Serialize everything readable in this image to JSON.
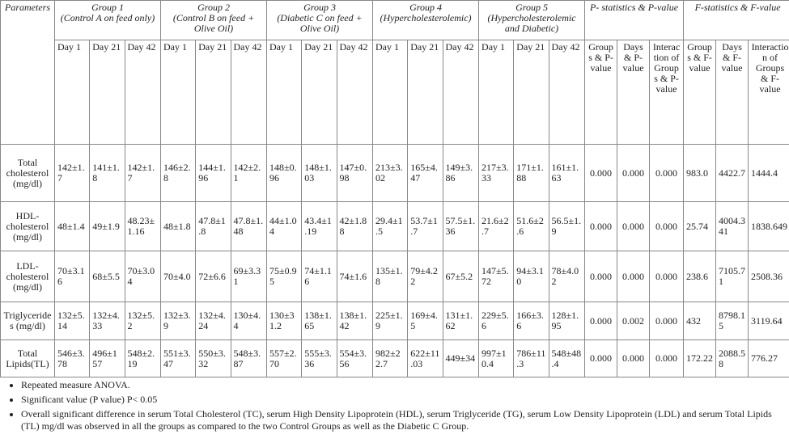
{
  "table": {
    "parameter_header": "Parameters",
    "groups": [
      {
        "name": "Group 1",
        "description": "(Control A on feed only)"
      },
      {
        "name": "Group 2",
        "description": "(Control B on feed + Olive Oil)"
      },
      {
        "name": "Group 3",
        "description": "(Diabetic C on feed + Olive Oil)"
      },
      {
        "name": "Group 4",
        "description": "(Hypercholesterolemic)"
      },
      {
        "name": "Group 5",
        "description": "(Hypercholesterolemic and Diabetic)"
      }
    ],
    "p_header": "P- statistics & P-value",
    "f_header": "F-statistics & F-value",
    "sub_headers": [
      "Day 1",
      "Day 21",
      "Day 42",
      "Day 1",
      "Day 21",
      "Day 42",
      "Day 1",
      "Day 21",
      "Day 42",
      "Day 1",
      "Day 21",
      "Day 42",
      "Day 1",
      "Day 21",
      "Day 42",
      "Groups & P-value",
      "Days & P-value",
      "Interaction of Groups & P-value",
      "Groups & F-value",
      "Days & F-value",
      "Interaction of Groups & F-value"
    ],
    "rows": [
      [
        "Total cholesterol (mg/dl)",
        "142±1.7",
        "141±1.8",
        "142±1.7",
        "146±2.8",
        "144±1.96",
        "142±2.1",
        "148±0.96",
        "148±1.03",
        "147±0.98",
        "213±3.02",
        "165±4.47",
        "149±3.86",
        "217±3.33",
        "171±1.88",
        "161±1.63",
        "0.000",
        "0.000",
        "0.000",
        "983.0",
        "4422.7",
        "1444.4"
      ],
      [
        "HDL-cholesterol (mg/dl)",
        "48±1.4",
        "49±1.9",
        "48.23±1.16",
        "48±1.8",
        "47.8±1.8",
        "47.8±1.48",
        "44±1.04",
        "43.4±1.19",
        "42±1.88",
        "29.4±1.5",
        "53.7±1.7",
        "57.5±1.36",
        "21.6±2.7",
        "51.6±2.6",
        "56.5±1.9",
        "0.000",
        "0.000",
        "0.000",
        "25.74",
        "4004.341",
        "1838.649"
      ],
      [
        "LDL-cholesterol (mg/dl)",
        "70±3.16",
        "68±5.5",
        "70±3.04",
        "70±4.0",
        "72±6.6",
        "69±3.31",
        "75±0.95",
        "74±1.16",
        "74±1.6",
        "135±1.8",
        "79±4.22",
        "67±5.2",
        "147±5.72",
        "94±3.10",
        "78±4.02",
        "0.000",
        "0.000",
        "0.000",
        "238.6",
        "7105.71",
        "2508.36"
      ],
      [
        "Triglycerides (mg/dl)",
        "132±5.14",
        "132±4.33",
        "132±5.2",
        "132±3.9",
        "132±4.24",
        "130±4.4",
        "130±31.2",
        "138±1.65",
        "138±1.42",
        "225±1.9",
        "169±4.5",
        "131±1.62",
        "229±5.6",
        "166±3.6",
        "128±1.95",
        "0.000",
        "0.002",
        "0.000",
        "432",
        "8798.15",
        "3119.64"
      ],
      [
        "Total Lipids(TL)",
        "546±3.78",
        "496±157",
        "548±2.19",
        "551±3.47",
        "550±3.32",
        "548±3.87",
        "557±2.70",
        "555±3.36",
        "554±3.56",
        "982±22.7",
        "622±11.03",
        "449±34",
        "997±10.4",
        "786±11.3",
        "548±48.4",
        "0.000",
        "0.000",
        "0.000",
        "172.22",
        "2088.58",
        "776.27"
      ]
    ]
  },
  "notes": [
    "Repeated measure ANOVA.",
    "Significant value (P value) P< 0.05",
    "Overall significant difference in serum Total Cholesterol (TC), serum High Density Lipoprotein (HDL), serum Triglyceride (TG), serum Low Density Lipoprotein (LDL) and serum Total Lipids (TL) mg/dl was observed in all the groups as compared to the two Control Groups as well as the Diabetic C Group."
  ]
}
